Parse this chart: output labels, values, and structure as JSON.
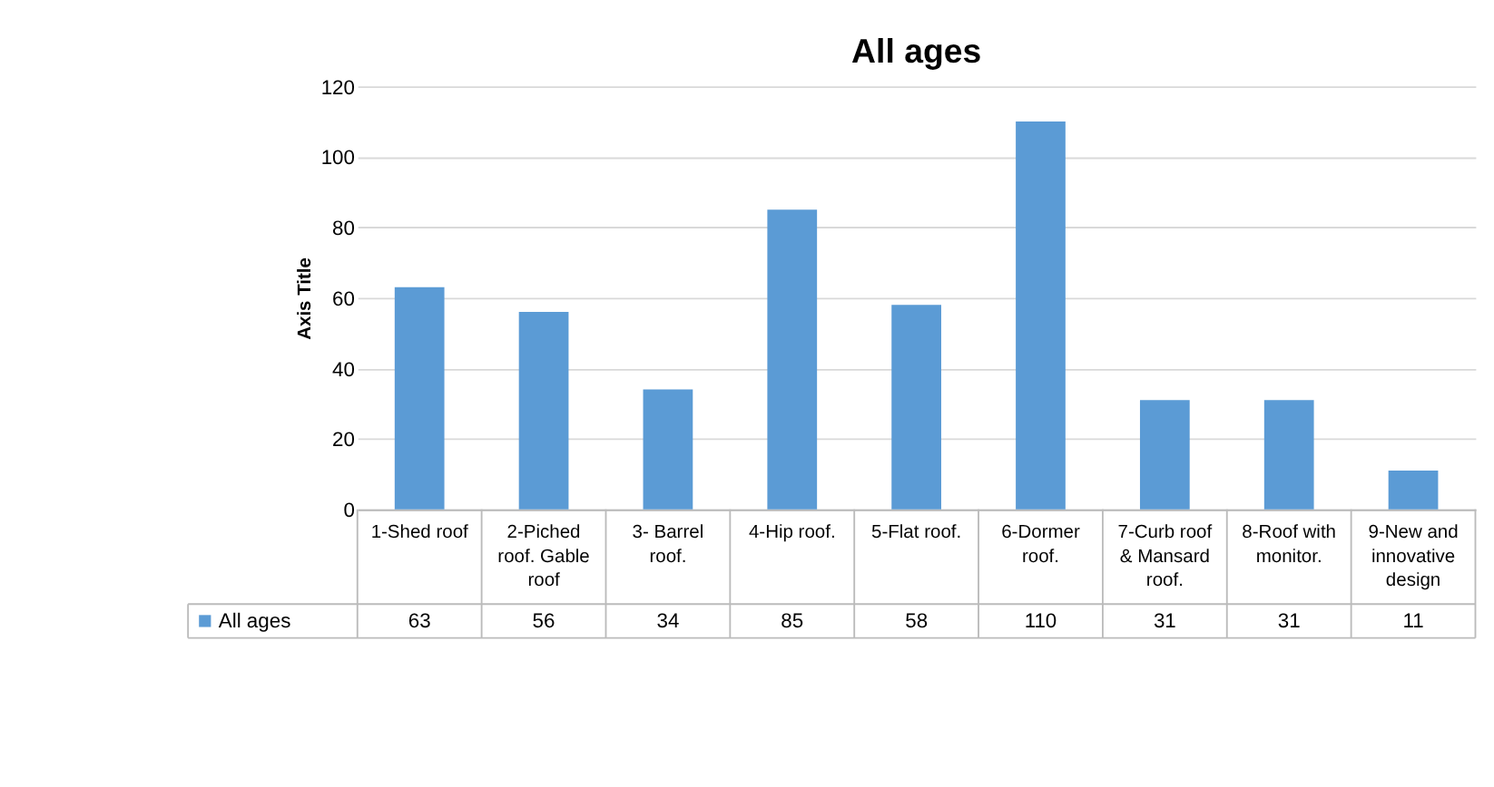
{
  "chart_data": {
    "type": "bar",
    "title": "All ages",
    "ylabel": "Axis Title",
    "categories": [
      "1-Shed roof",
      "2-Piched roof. Gable roof",
      "3- Barrel roof.",
      "4-Hip roof.",
      "5-Flat roof.",
      "6-Dormer roof.",
      "7-Curb roof & Mansard roof.",
      "8-Roof with monitor.",
      "9-New and innovative design"
    ],
    "series": [
      {
        "name": "All ages",
        "color": "#5b9bd5",
        "values": [
          63,
          56,
          34,
          85,
          58,
          110,
          31,
          31,
          11
        ]
      }
    ],
    "ylim": [
      0,
      120
    ],
    "yticks": [
      0,
      20,
      40,
      60,
      80,
      100,
      120
    ],
    "grid": "y",
    "data_labels": true,
    "legend": "bottom"
  }
}
